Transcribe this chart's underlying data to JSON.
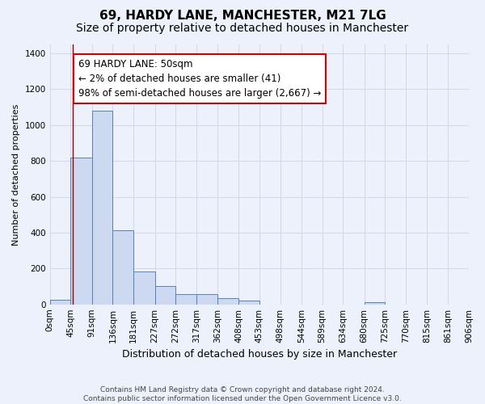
{
  "title": "69, HARDY LANE, MANCHESTER, M21 7LG",
  "subtitle": "Size of property relative to detached houses in Manchester",
  "xlabel": "Distribution of detached houses by size in Manchester",
  "ylabel": "Number of detached properties",
  "bar_color": "#ccd9f0",
  "bar_edge_color": "#5580bb",
  "vline_color": "#990000",
  "vline_x": 50,
  "annotation_line1": "69 HARDY LANE: 50sqm",
  "annotation_line2": "← 2% of detached houses are smaller (41)",
  "annotation_line3": "98% of semi-detached houses are larger (2,667) →",
  "annotation_box_color": "white",
  "annotation_border_color": "#cc0000",
  "bins": [
    0,
    45,
    91,
    136,
    181,
    227,
    272,
    317,
    362,
    408,
    453,
    498,
    544,
    589,
    634,
    680,
    725,
    770,
    815,
    861,
    906
  ],
  "bar_heights": [
    25,
    820,
    1080,
    415,
    183,
    100,
    57,
    57,
    33,
    20,
    0,
    0,
    0,
    0,
    0,
    12,
    0,
    0,
    0,
    0
  ],
  "ylim": [
    0,
    1450
  ],
  "yticks": [
    0,
    200,
    400,
    600,
    800,
    1000,
    1200,
    1400
  ],
  "background_color": "#edf1fb",
  "grid_color": "#d0d8ee",
  "footnote": "Contains HM Land Registry data © Crown copyright and database right 2024.\nContains public sector information licensed under the Open Government Licence v3.0.",
  "title_fontsize": 11,
  "subtitle_fontsize": 10,
  "xlabel_fontsize": 9,
  "ylabel_fontsize": 8,
  "tick_fontsize": 7.5,
  "annotation_fontsize": 8.5,
  "footnote_fontsize": 6.5
}
